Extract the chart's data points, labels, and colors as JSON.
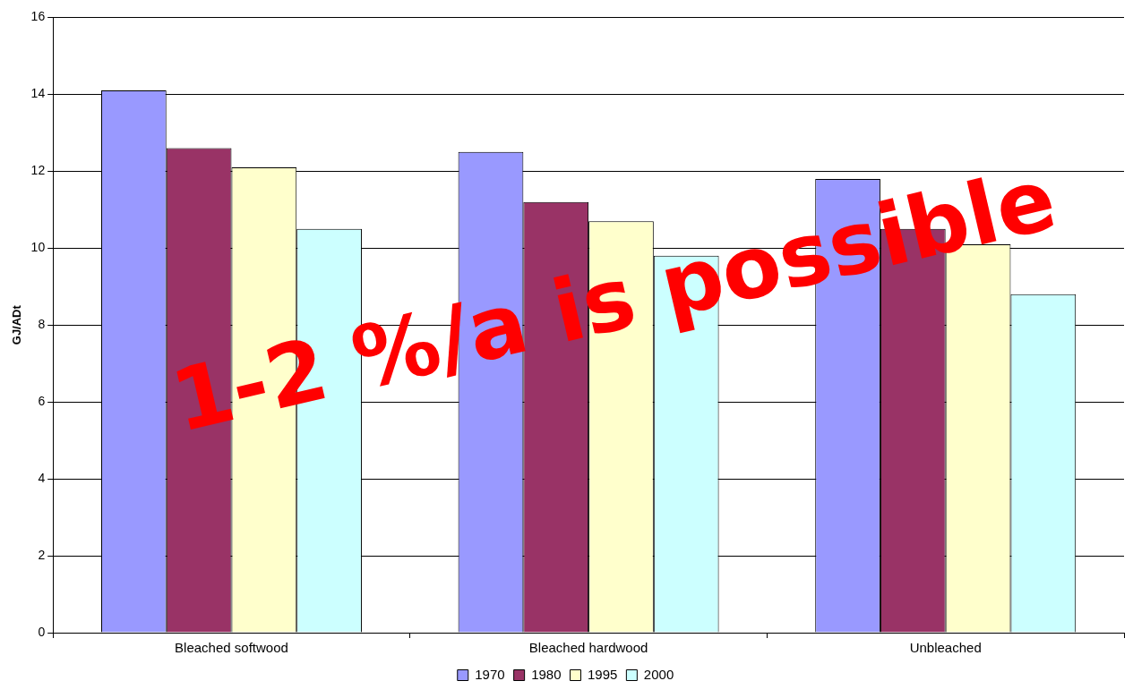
{
  "chart_data": {
    "type": "bar",
    "ylabel": "GJ/ADt",
    "categories": [
      "Bleached softwood",
      "Bleached hardwood",
      "Unbleached"
    ],
    "series": [
      {
        "name": "1970",
        "color": "#9999ff",
        "values": [
          14.1,
          12.5,
          11.8
        ]
      },
      {
        "name": "1980",
        "color": "#993366",
        "values": [
          12.6,
          11.2,
          10.5
        ]
      },
      {
        "name": "1995",
        "color": "#ffffcc",
        "values": [
          12.1,
          10.7,
          10.1
        ]
      },
      {
        "name": "2000",
        "color": "#ccffff",
        "values": [
          10.5,
          9.8,
          8.8
        ]
      }
    ],
    "ylim": [
      0,
      16
    ],
    "yticks": [
      0,
      2,
      4,
      6,
      8,
      10,
      12,
      14,
      16
    ],
    "grid": "y",
    "legend": "bottom",
    "annotations": [
      "1-2 %/a is possible"
    ]
  }
}
